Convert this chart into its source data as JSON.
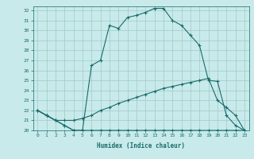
{
  "title": "",
  "xlabel": "Humidex (Indice chaleur)",
  "background_color": "#c8eaea",
  "grid_color": "#a0c8c8",
  "line_color": "#1a6b6b",
  "xlim": [
    -0.5,
    23.5
  ],
  "ylim": [
    20,
    32.4
  ],
  "xticks": [
    0,
    1,
    2,
    3,
    4,
    5,
    6,
    7,
    8,
    9,
    10,
    11,
    12,
    13,
    14,
    15,
    16,
    17,
    18,
    19,
    20,
    21,
    22,
    23
  ],
  "yticks": [
    20,
    21,
    22,
    23,
    24,
    25,
    26,
    27,
    28,
    29,
    30,
    31,
    32
  ],
  "line1_x": [
    0,
    1,
    2,
    3,
    4,
    5,
    6,
    7,
    8,
    9,
    10,
    11,
    12,
    13,
    14,
    15,
    16,
    17,
    18,
    19,
    20,
    21,
    22,
    23
  ],
  "line1_y": [
    22.0,
    21.5,
    21.0,
    20.5,
    20.0,
    20.0,
    26.5,
    27.0,
    30.5,
    30.2,
    31.3,
    31.5,
    31.8,
    32.2,
    32.2,
    31.0,
    30.5,
    29.5,
    28.5,
    25.0,
    24.9,
    21.5,
    20.5,
    20.0
  ],
  "line2_x": [
    0,
    1,
    2,
    3,
    4,
    5,
    6,
    7,
    8,
    9,
    10,
    11,
    12,
    13,
    14,
    15,
    16,
    17,
    18,
    19,
    20,
    21,
    22,
    23
  ],
  "line2_y": [
    22.0,
    21.5,
    21.0,
    21.0,
    21.0,
    21.2,
    21.5,
    22.0,
    22.3,
    22.7,
    23.0,
    23.3,
    23.6,
    23.9,
    24.2,
    24.4,
    24.6,
    24.8,
    25.0,
    25.2,
    23.0,
    22.3,
    21.5,
    20.0
  ],
  "line3_x": [
    0,
    1,
    2,
    3,
    4,
    5,
    6,
    7,
    8,
    9,
    10,
    11,
    12,
    13,
    14,
    15,
    16,
    17,
    18,
    19,
    20,
    21,
    22,
    23
  ],
  "line3_y": [
    22.0,
    21.5,
    21.0,
    20.5,
    20.0,
    20.0,
    20.0,
    20.0,
    20.0,
    20.0,
    20.0,
    20.0,
    20.0,
    20.0,
    20.0,
    20.0,
    20.0,
    20.0,
    20.0,
    20.0,
    20.0,
    20.0,
    20.0,
    20.0
  ]
}
